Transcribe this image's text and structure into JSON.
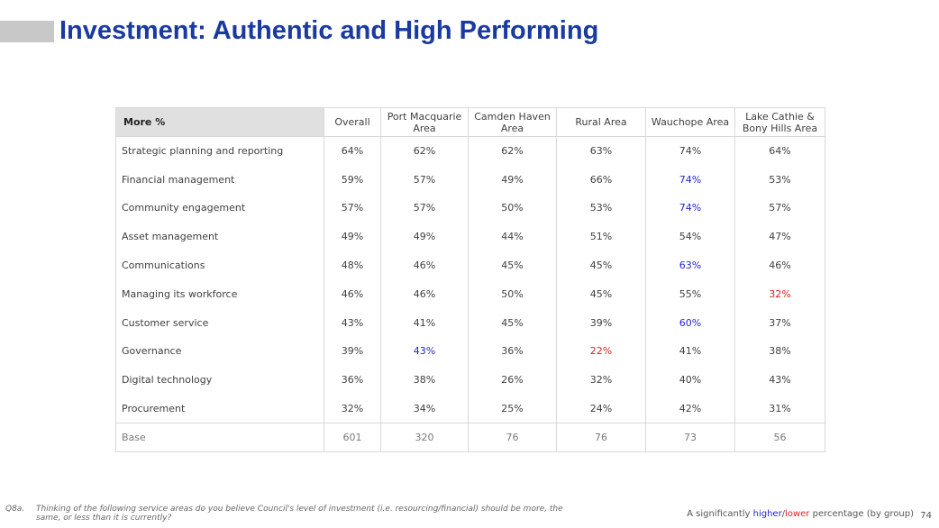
{
  "title": "Investment: Authentic and High Performing",
  "table": {
    "row_header": "More %",
    "columns": [
      [
        "Overall"
      ],
      [
        "Port Macquarie",
        "Area"
      ],
      [
        "Camden Haven",
        "Area"
      ],
      [
        "Rural Area"
      ],
      [
        "Wauchope Area"
      ],
      [
        "Lake Cathie &",
        "Bony Hills Area"
      ]
    ],
    "rows": [
      {
        "label": "Strategic planning and reporting",
        "values": [
          "64%",
          "62%",
          "62%",
          "63%",
          "74%",
          "64%"
        ],
        "flags": [
          "",
          "",
          "",
          "",
          "",
          ""
        ]
      },
      {
        "label": "Financial management",
        "values": [
          "59%",
          "57%",
          "49%",
          "66%",
          "74%",
          "53%"
        ],
        "flags": [
          "",
          "",
          "",
          "",
          "hi",
          ""
        ]
      },
      {
        "label": "Community engagement",
        "values": [
          "57%",
          "57%",
          "50%",
          "53%",
          "74%",
          "57%"
        ],
        "flags": [
          "",
          "",
          "",
          "",
          "hi",
          ""
        ]
      },
      {
        "label": "Asset management",
        "values": [
          "49%",
          "49%",
          "44%",
          "51%",
          "54%",
          "47%"
        ],
        "flags": [
          "",
          "",
          "",
          "",
          "",
          ""
        ]
      },
      {
        "label": "Communications",
        "values": [
          "48%",
          "46%",
          "45%",
          "45%",
          "63%",
          "46%"
        ],
        "flags": [
          "",
          "",
          "",
          "",
          "hi",
          ""
        ]
      },
      {
        "label": "Managing its workforce",
        "values": [
          "46%",
          "46%",
          "50%",
          "45%",
          "55%",
          "32%"
        ],
        "flags": [
          "",
          "",
          "",
          "",
          "",
          "lo"
        ]
      },
      {
        "label": "Customer service",
        "values": [
          "43%",
          "41%",
          "45%",
          "39%",
          "60%",
          "37%"
        ],
        "flags": [
          "",
          "",
          "",
          "",
          "hi",
          ""
        ]
      },
      {
        "label": "Governance",
        "values": [
          "39%",
          "43%",
          "36%",
          "22%",
          "41%",
          "38%"
        ],
        "flags": [
          "",
          "hi",
          "",
          "lo",
          "",
          ""
        ]
      },
      {
        "label": "Digital technology",
        "values": [
          "36%",
          "38%",
          "26%",
          "32%",
          "40%",
          "43%"
        ],
        "flags": [
          "",
          "",
          "",
          "",
          "",
          ""
        ]
      },
      {
        "label": "Procurement",
        "values": [
          "32%",
          "34%",
          "25%",
          "24%",
          "42%",
          "31%"
        ],
        "flags": [
          "",
          "",
          "",
          "",
          "",
          ""
        ]
      }
    ],
    "base": {
      "label": "Base",
      "values": [
        "601",
        "320",
        "76",
        "76",
        "73",
        "56"
      ]
    }
  },
  "footnote": {
    "code": "Q8a.",
    "text": "Thinking of the following service areas do you believe Council's level of investment (i.e. resourcing/financial) should be more, the same, or less than it is currently?"
  },
  "legend": {
    "prefix": "A significantly ",
    "higher": "higher",
    "slash": "/",
    "lower": "lower",
    "suffix": " percentage (by group)"
  },
  "page_number": "74",
  "colors": {
    "title": "#1a3aa0",
    "higher": "#2424d6",
    "lower": "#e02020"
  }
}
